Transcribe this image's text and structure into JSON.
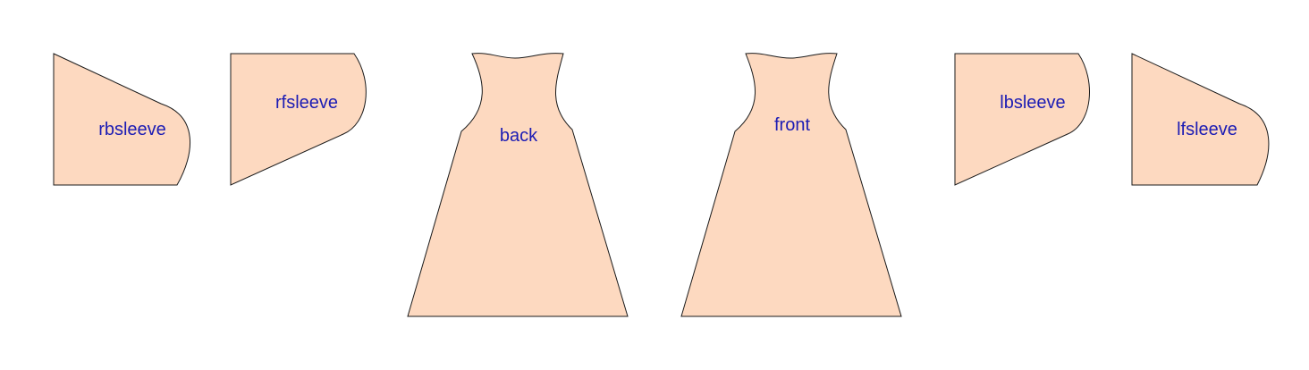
{
  "colors": {
    "piece_fill": "#fdd9c0",
    "outline": "#1a1a1a",
    "label": "#1c1cb4"
  },
  "pieces": {
    "rbsleeve": {
      "label": "rbsleeve"
    },
    "rfsleeve": {
      "label": "rfsleeve"
    },
    "back": {
      "label": "back"
    },
    "front": {
      "label": "front"
    },
    "lbsleeve": {
      "label": "lbsleeve"
    },
    "lfsleeve": {
      "label": "lfsleeve"
    }
  }
}
